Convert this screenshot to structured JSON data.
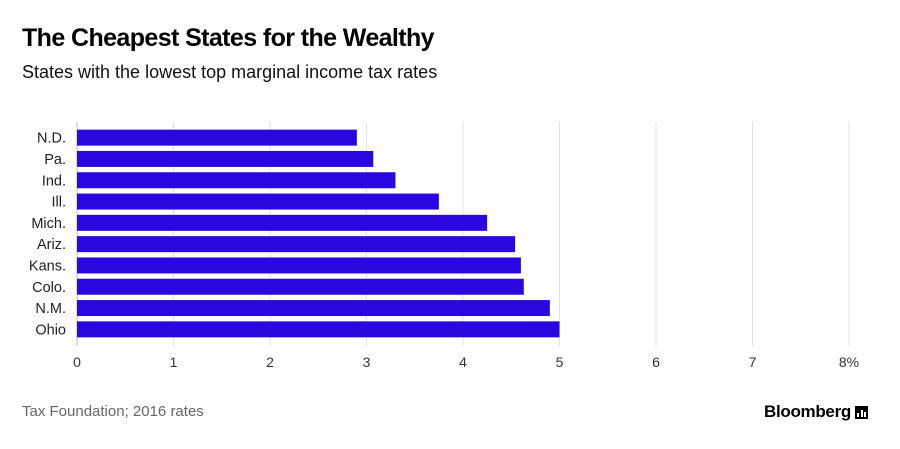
{
  "header": {
    "title": "The Cheapest States for the Wealthy",
    "subtitle": "States with the lowest top marginal income tax rates"
  },
  "footer": {
    "source": "Tax Foundation; 2016 rates",
    "brand": "Bloomberg",
    "brand_icon": "bloomberg-terminal-icon"
  },
  "chart_data": {
    "type": "bar",
    "orientation": "horizontal",
    "categories": [
      "N.D.",
      "Pa.",
      "Ind.",
      "Ill.",
      "Mich.",
      "Ariz.",
      "Kans.",
      "Colo.",
      "N.M.",
      "Ohio"
    ],
    "values": [
      2.9,
      3.07,
      3.3,
      3.75,
      4.25,
      4.54,
      4.6,
      4.63,
      4.9,
      5.0
    ],
    "title": "The Cheapest States for the Wealthy",
    "subtitle": "States with the lowest top marginal income tax rates",
    "xlim": [
      0,
      8
    ],
    "x_ticks": [
      "0",
      "1",
      "2",
      "3",
      "4",
      "5",
      "6",
      "7",
      "8%"
    ],
    "grid": true,
    "bar_color": "#2a07e0"
  }
}
